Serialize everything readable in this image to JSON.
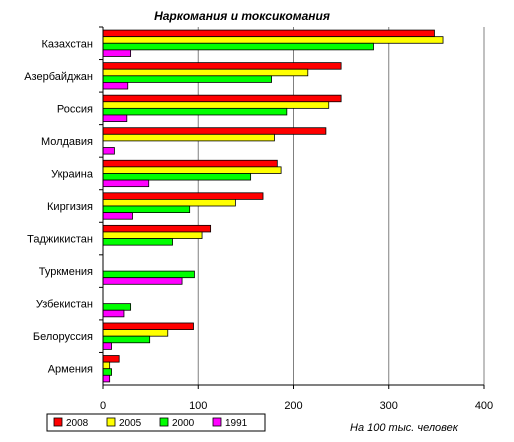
{
  "chart_data": {
    "type": "bar",
    "orientation": "horizontal",
    "title": "Наркомания и токсикомания",
    "unit_label": "На 100 тыс. человек",
    "categories": [
      "Казахстан",
      "Азербайджан",
      "Россия",
      "Молдавия",
      "Украина",
      "Киргизия",
      "Таджикистан",
      "Туркмения",
      "Узбекистан",
      "Белоруссия",
      "Армения"
    ],
    "series": [
      {
        "name": "2008",
        "color": "#ff0000",
        "values": [
          348,
          250,
          250,
          234,
          183,
          168,
          113,
          0,
          0,
          95,
          17
        ]
      },
      {
        "name": "2005",
        "color": "#ffff00",
        "values": [
          357,
          215,
          237,
          180,
          187,
          139,
          104,
          0,
          0,
          68,
          7
        ]
      },
      {
        "name": "2000",
        "color": "#00ff00",
        "values": [
          284,
          177,
          193,
          0,
          155,
          91,
          73,
          96,
          29,
          49,
          9
        ]
      },
      {
        "name": "1991",
        "color": "#ff00ff",
        "values": [
          29,
          26,
          25,
          12,
          48,
          31,
          0,
          83,
          22,
          9,
          7
        ]
      }
    ],
    "xlim": [
      0,
      400
    ],
    "x_ticks": [
      "0",
      "100",
      "200",
      "300",
      "400"
    ],
    "grid": true,
    "legend_position": "bottom-left"
  }
}
